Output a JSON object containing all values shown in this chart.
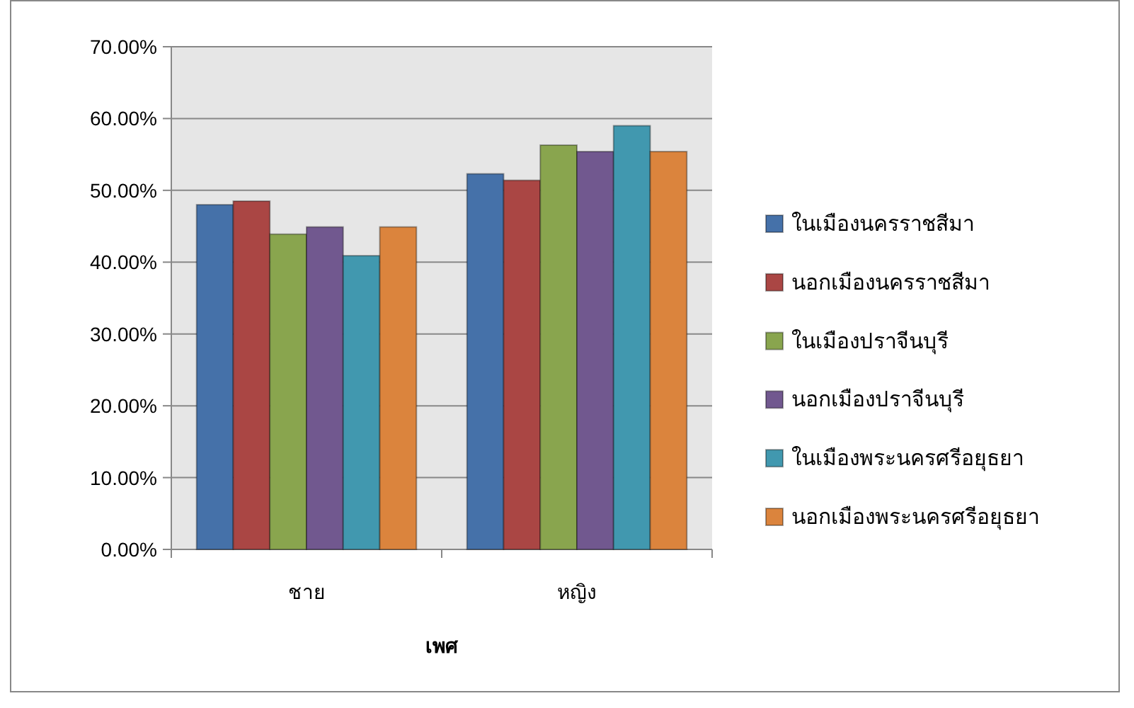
{
  "chart_data": {
    "type": "bar",
    "xlabel": "เพศ",
    "categories": [
      "ชาย",
      "หญิง"
    ],
    "series": [
      {
        "name": "ในเมืองนครราชสีมา",
        "color": "#4571a9",
        "values": [
          48.0,
          52.3
        ]
      },
      {
        "name": "นอกเมืองนครราชสีมา",
        "color": "#aa4644",
        "values": [
          48.5,
          51.4
        ]
      },
      {
        "name": "ในเมืองปราจีนบุรี",
        "color": "#89a54e",
        "values": [
          43.9,
          56.3
        ]
      },
      {
        "name": "นอกเมืองปราจีนบุรี",
        "color": "#71588f",
        "values": [
          44.9,
          55.4
        ]
      },
      {
        "name": "ในเมืองพระนครศรีอยุธยา",
        "color": "#4198af",
        "values": [
          40.9,
          59.0
        ]
      },
      {
        "name": "นอกเมืองพระนครศรีอยุธยา",
        "color": "#db843d",
        "values": [
          44.9,
          55.4
        ]
      }
    ],
    "ylim": [
      0,
      70
    ],
    "yticks": [
      {
        "value": 0,
        "label": "0.00%"
      },
      {
        "value": 10,
        "label": "10.00%"
      },
      {
        "value": 20,
        "label": "20.00%"
      },
      {
        "value": 30,
        "label": "30.00%"
      },
      {
        "value": 40,
        "label": "40.00%"
      },
      {
        "value": 50,
        "label": "50.00%"
      },
      {
        "value": 60,
        "label": "60.00%"
      },
      {
        "value": 70,
        "label": "70.00%"
      }
    ],
    "grid": "y",
    "legend": "right"
  }
}
